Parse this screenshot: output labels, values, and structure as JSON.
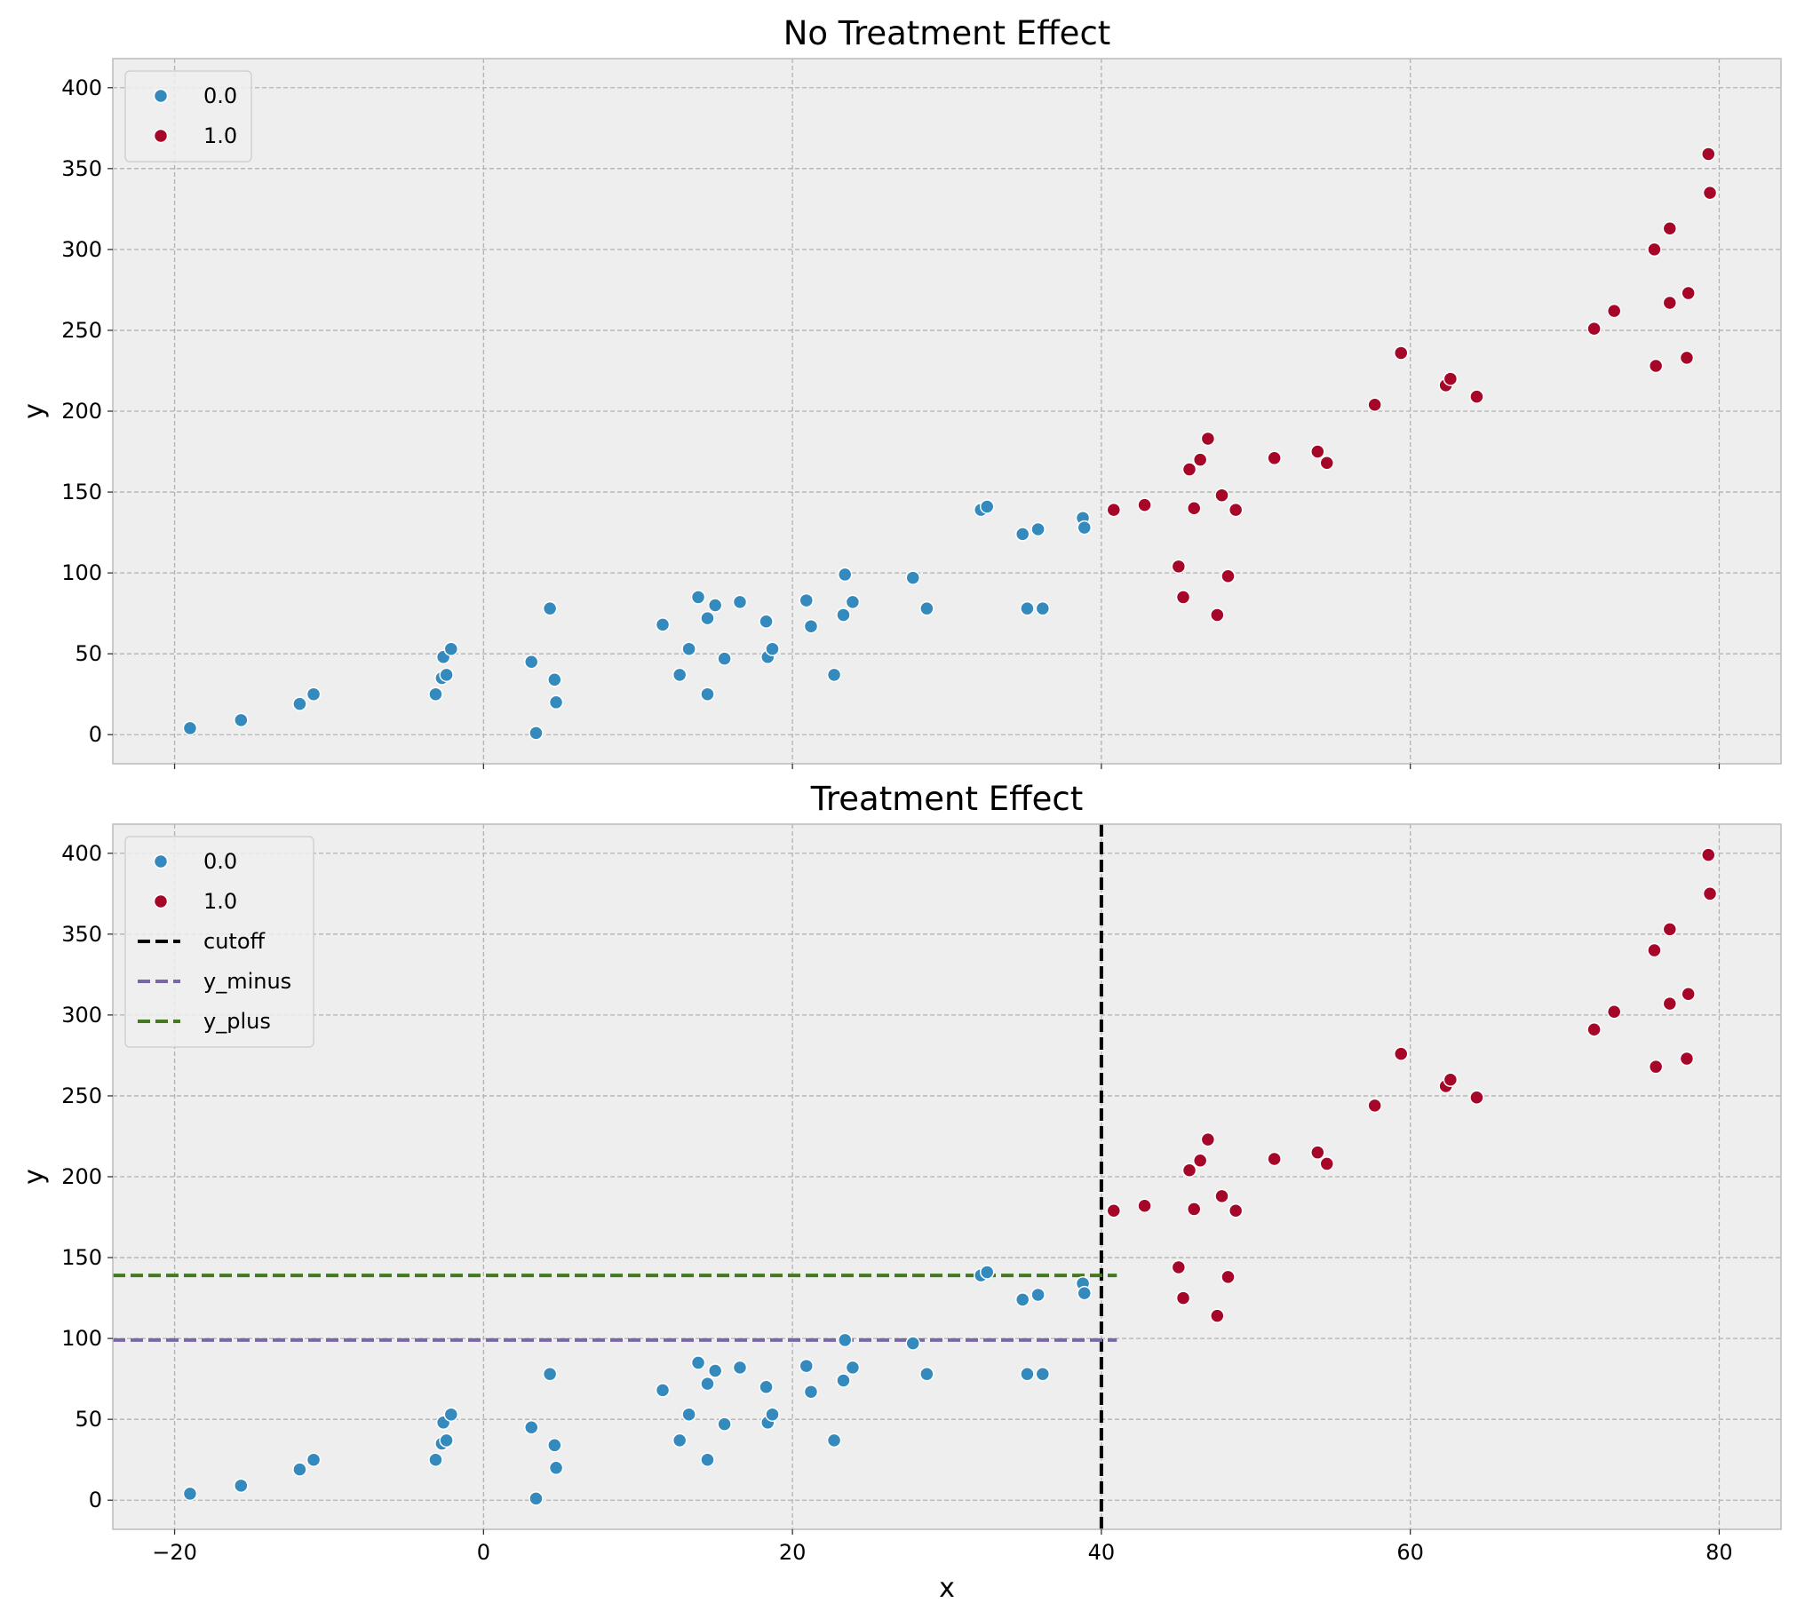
{
  "chart_data": [
    {
      "type": "scatter",
      "title": "No Treatment Effect",
      "xlabel": "",
      "ylabel": "y",
      "xlim": [
        -24,
        84
      ],
      "ylim": [
        -18,
        418
      ],
      "xticks": [
        -20,
        0,
        20,
        40,
        60,
        80
      ],
      "yticks": [
        0,
        50,
        100,
        150,
        200,
        250,
        300,
        350,
        400
      ],
      "grid": true,
      "legend": "top-left",
      "series": [
        {
          "name": "0.0",
          "color": "#348abd",
          "points": [
            [
              -19,
              4
            ],
            [
              -15.7,
              9
            ],
            [
              -11.9,
              19
            ],
            [
              -11,
              25
            ],
            [
              -3.1,
              25
            ],
            [
              -2.7,
              35
            ],
            [
              -2.6,
              48
            ],
            [
              -2.4,
              37
            ],
            [
              -2.1,
              53
            ],
            [
              3.1,
              45
            ],
            [
              3.4,
              1
            ],
            [
              4.3,
              78
            ],
            [
              4.6,
              34
            ],
            [
              4.7,
              20
            ],
            [
              11.6,
              68
            ],
            [
              12.7,
              37
            ],
            [
              13.3,
              53
            ],
            [
              13.9,
              85
            ],
            [
              14.5,
              72
            ],
            [
              14.5,
              25
            ],
            [
              15,
              80
            ],
            [
              15.6,
              47
            ],
            [
              16.6,
              82
            ],
            [
              18.3,
              70
            ],
            [
              18.4,
              48
            ],
            [
              18.7,
              53
            ],
            [
              20.9,
              83
            ],
            [
              21.2,
              67
            ],
            [
              22.7,
              37
            ],
            [
              23.3,
              74
            ],
            [
              23.4,
              99
            ],
            [
              23.9,
              82
            ],
            [
              27.8,
              97
            ],
            [
              28.7,
              78
            ],
            [
              32.2,
              139
            ],
            [
              32.6,
              141
            ],
            [
              34.9,
              124
            ],
            [
              35.2,
              78
            ],
            [
              35.9,
              127
            ],
            [
              36.2,
              78
            ],
            [
              38.8,
              134
            ],
            [
              38.9,
              128
            ]
          ]
        },
        {
          "name": "1.0",
          "color": "#a60628",
          "points": [
            [
              40.8,
              139
            ],
            [
              42.8,
              142
            ],
            [
              45,
              104
            ],
            [
              45.3,
              85
            ],
            [
              45.7,
              164
            ],
            [
              46,
              140
            ],
            [
              46.4,
              170
            ],
            [
              46.9,
              183
            ],
            [
              47.5,
              74
            ],
            [
              47.8,
              148
            ],
            [
              48.2,
              98
            ],
            [
              48.7,
              139
            ],
            [
              51.2,
              171
            ],
            [
              54,
              175
            ],
            [
              54.6,
              168
            ],
            [
              57.7,
              204
            ],
            [
              59.4,
              236
            ],
            [
              62.3,
              216
            ],
            [
              62.6,
              220
            ],
            [
              64.3,
              209
            ],
            [
              71.9,
              251
            ],
            [
              73.2,
              262
            ],
            [
              75.8,
              300
            ],
            [
              75.9,
              228
            ],
            [
              76.8,
              313
            ],
            [
              76.8,
              267
            ],
            [
              77.9,
              233
            ],
            [
              78,
              273
            ],
            [
              79.3,
              359
            ],
            [
              79.4,
              335
            ]
          ]
        }
      ]
    },
    {
      "type": "scatter",
      "title": "Treatment Effect",
      "xlabel": "x",
      "ylabel": "y",
      "xlim": [
        -24,
        84
      ],
      "ylim": [
        -18,
        418
      ],
      "xticks": [
        -20,
        0,
        20,
        40,
        60,
        80
      ],
      "yticks": [
        0,
        50,
        100,
        150,
        200,
        250,
        300,
        350,
        400
      ],
      "grid": true,
      "legend": "top-left",
      "series": [
        {
          "name": "0.0",
          "color": "#348abd",
          "points": [
            [
              -19,
              4
            ],
            [
              -15.7,
              9
            ],
            [
              -11.9,
              19
            ],
            [
              -11,
              25
            ],
            [
              -3.1,
              25
            ],
            [
              -2.7,
              35
            ],
            [
              -2.6,
              48
            ],
            [
              -2.4,
              37
            ],
            [
              -2.1,
              53
            ],
            [
              3.1,
              45
            ],
            [
              3.4,
              1
            ],
            [
              4.3,
              78
            ],
            [
              4.6,
              34
            ],
            [
              4.7,
              20
            ],
            [
              11.6,
              68
            ],
            [
              12.7,
              37
            ],
            [
              13.3,
              53
            ],
            [
              13.9,
              85
            ],
            [
              14.5,
              72
            ],
            [
              14.5,
              25
            ],
            [
              15,
              80
            ],
            [
              15.6,
              47
            ],
            [
              16.6,
              82
            ],
            [
              18.3,
              70
            ],
            [
              18.4,
              48
            ],
            [
              18.7,
              53
            ],
            [
              20.9,
              83
            ],
            [
              21.2,
              67
            ],
            [
              22.7,
              37
            ],
            [
              23.3,
              74
            ],
            [
              23.4,
              99
            ],
            [
              23.9,
              82
            ],
            [
              27.8,
              97
            ],
            [
              28.7,
              78
            ],
            [
              32.2,
              139
            ],
            [
              32.6,
              141
            ],
            [
              34.9,
              124
            ],
            [
              35.2,
              78
            ],
            [
              35.9,
              127
            ],
            [
              36.2,
              78
            ],
            [
              38.8,
              134
            ],
            [
              38.9,
              128
            ]
          ]
        },
        {
          "name": "1.0",
          "color": "#a60628",
          "points": [
            [
              40.8,
              179
            ],
            [
              42.8,
              182
            ],
            [
              45,
              144
            ],
            [
              45.3,
              125
            ],
            [
              45.7,
              204
            ],
            [
              46,
              180
            ],
            [
              46.4,
              210
            ],
            [
              46.9,
              223
            ],
            [
              47.5,
              114
            ],
            [
              47.8,
              188
            ],
            [
              48.2,
              138
            ],
            [
              48.7,
              179
            ],
            [
              51.2,
              211
            ],
            [
              54,
              215
            ],
            [
              54.6,
              208
            ],
            [
              57.7,
              244
            ],
            [
              59.4,
              276
            ],
            [
              62.3,
              256
            ],
            [
              62.6,
              260
            ],
            [
              64.3,
              249
            ],
            [
              71.9,
              291
            ],
            [
              73.2,
              302
            ],
            [
              75.8,
              340
            ],
            [
              75.9,
              268
            ],
            [
              76.8,
              353
            ],
            [
              76.8,
              307
            ],
            [
              77.9,
              273
            ],
            [
              78,
              313
            ],
            [
              79.3,
              399
            ],
            [
              79.4,
              375
            ]
          ]
        }
      ],
      "lines": [
        {
          "name": "cutoff",
          "color": "#000000",
          "orientation": "vertical",
          "x": 40
        },
        {
          "name": "y_minus",
          "color": "#7a68a6",
          "orientation": "horizontal",
          "y": 99,
          "xmax": 41
        },
        {
          "name": "y_plus",
          "color": "#467821",
          "orientation": "horizontal",
          "y": 139,
          "xmax": 41
        }
      ]
    }
  ]
}
